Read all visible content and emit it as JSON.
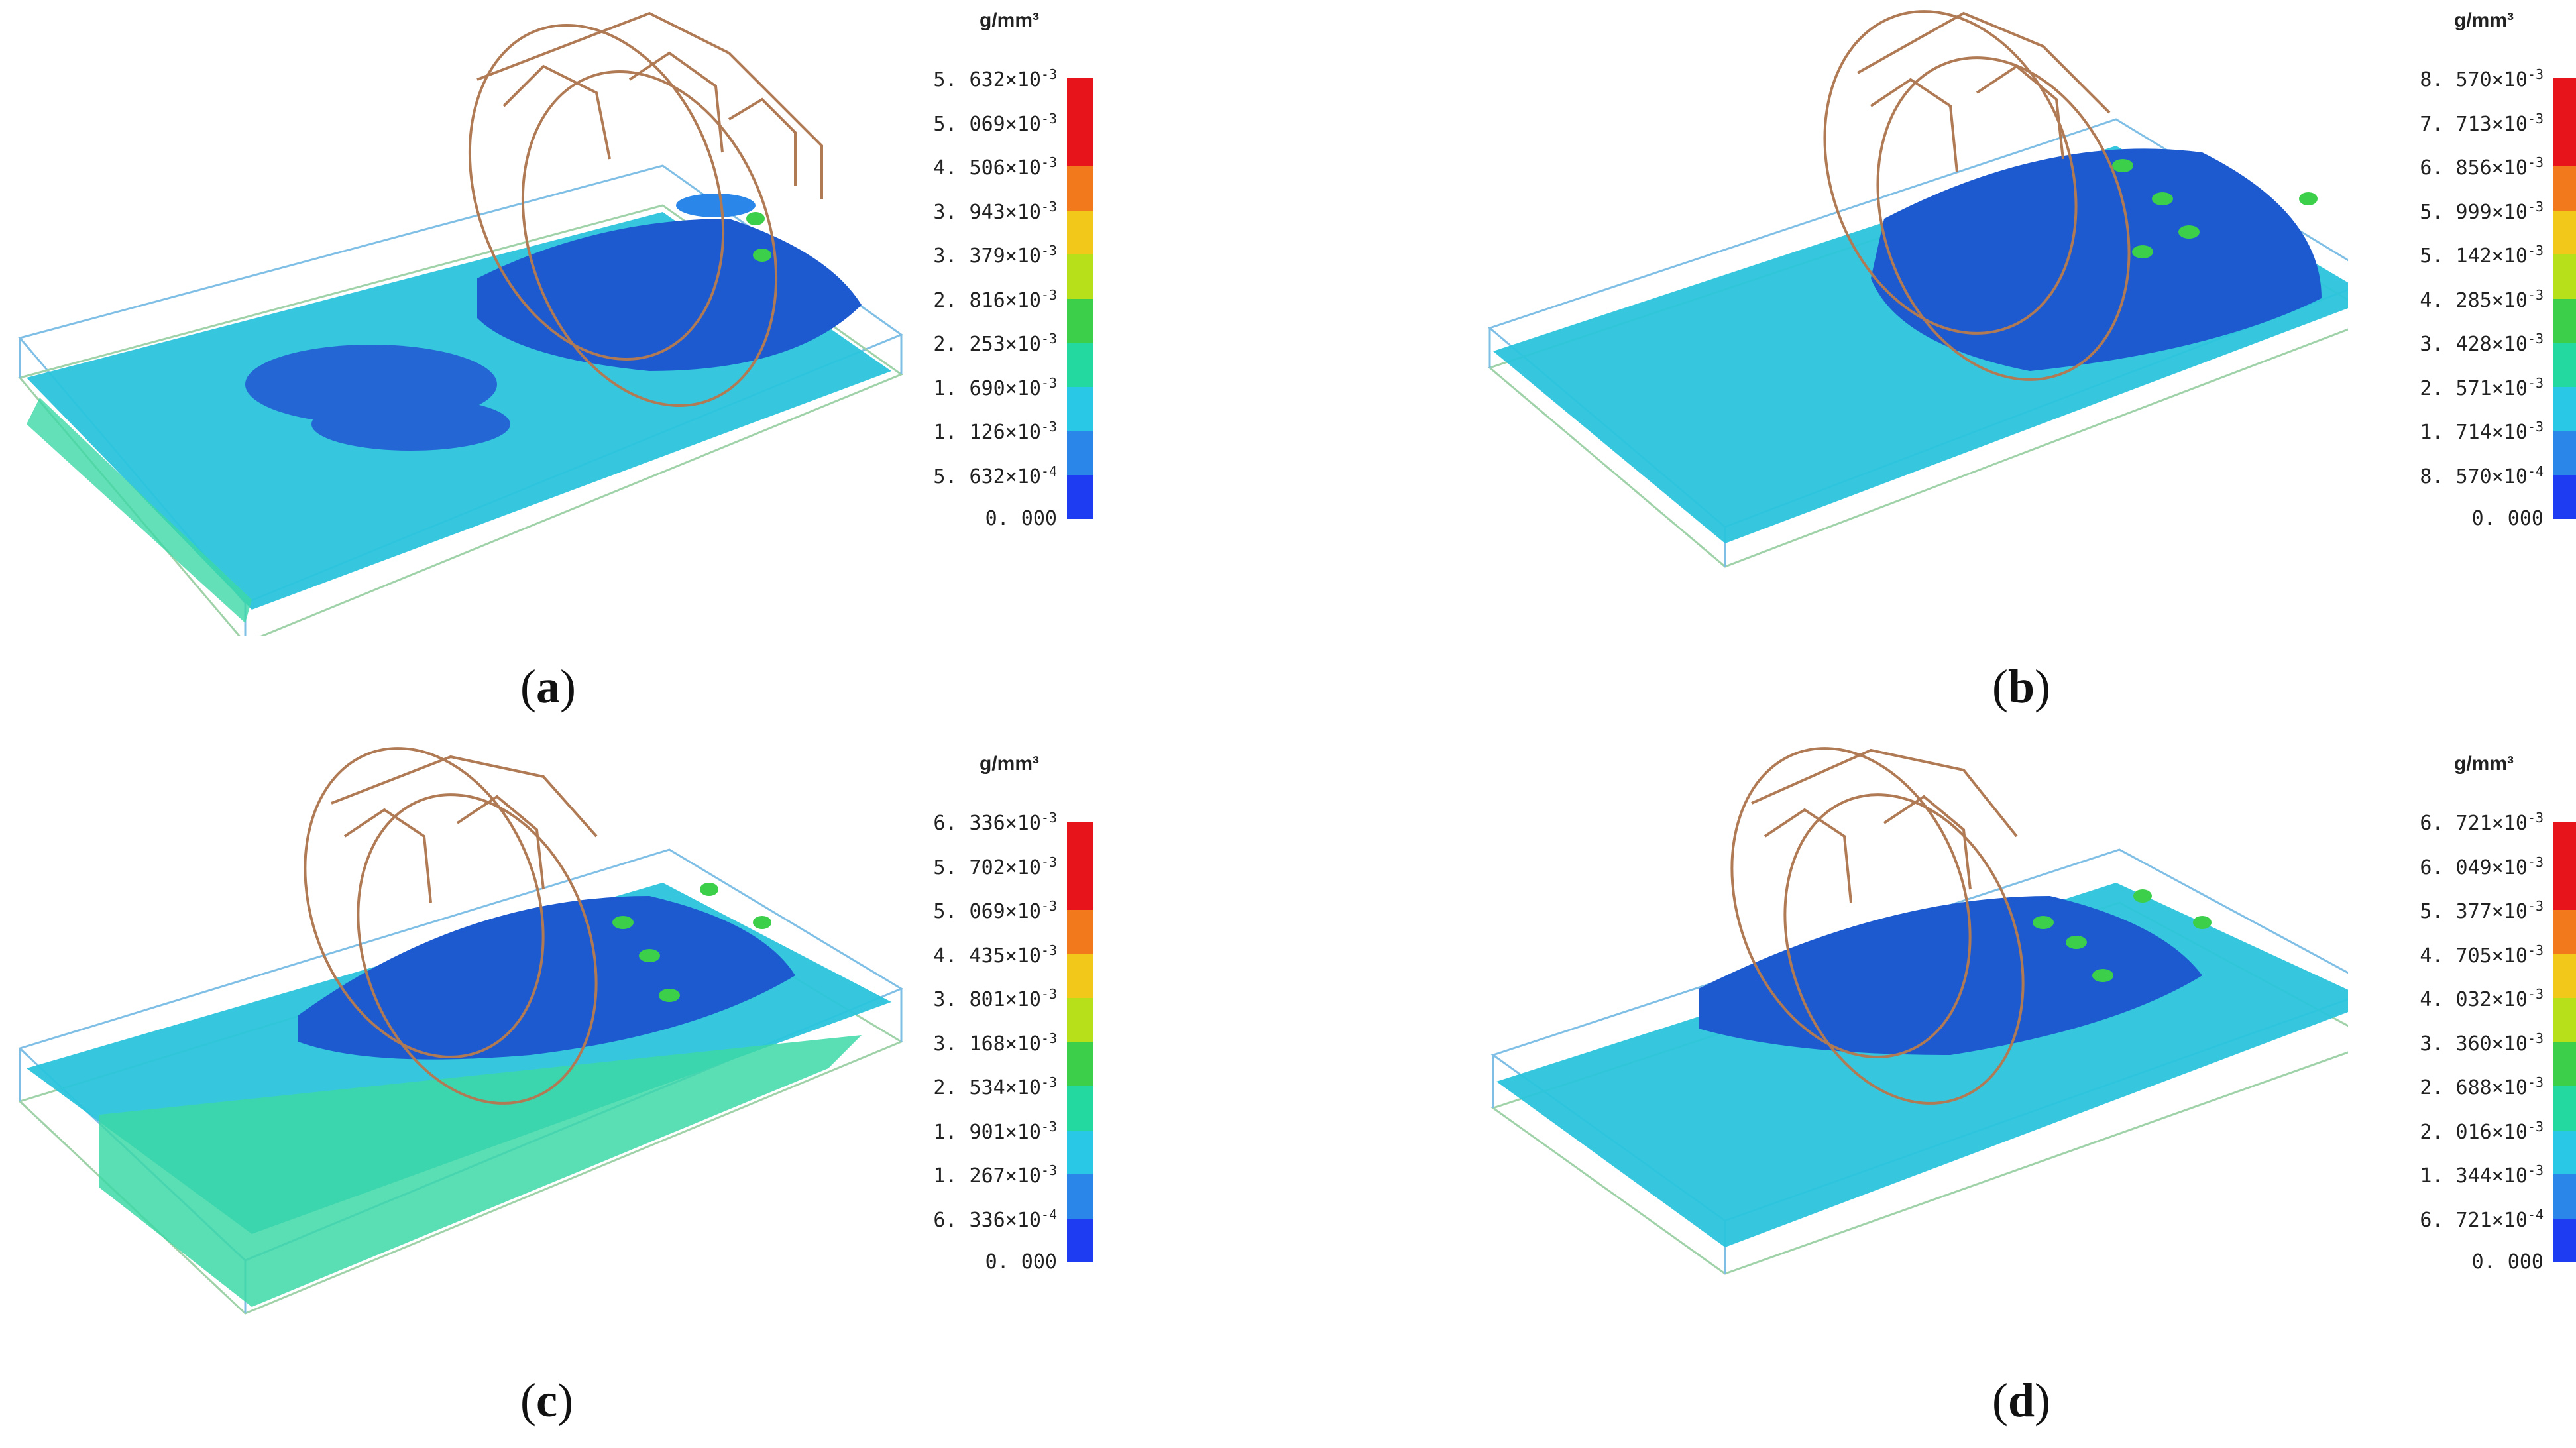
{
  "unit_label": "g/mm³",
  "colors": [
    "#e8141c",
    "#f27a1c",
    "#f2c81a",
    "#b8e01a",
    "#3ccf4a",
    "#24d9a0",
    "#28c8e6",
    "#2a86e8",
    "#1e3cf2"
  ],
  "panels": [
    {
      "id": "a",
      "caption_letter": "a",
      "ticks": [
        {
          "mant": "5. 632",
          "exp": "-3"
        },
        {
          "mant": "5. 069",
          "exp": "-3"
        },
        {
          "mant": "4. 506",
          "exp": "-3"
        },
        {
          "mant": "3. 943",
          "exp": "-3"
        },
        {
          "mant": "3. 379",
          "exp": "-3"
        },
        {
          "mant": "2. 816",
          "exp": "-3"
        },
        {
          "mant": "2. 253",
          "exp": "-3"
        },
        {
          "mant": "1. 690",
          "exp": "-3"
        },
        {
          "mant": "1. 126",
          "exp": "-3"
        },
        {
          "mant": "5. 632",
          "exp": "-4"
        },
        {
          "mant": "0. 000",
          "exp": ""
        }
      ]
    },
    {
      "id": "b",
      "caption_letter": "b",
      "ticks": [
        {
          "mant": "8. 570",
          "exp": "-3"
        },
        {
          "mant": "7. 713",
          "exp": "-3"
        },
        {
          "mant": "6. 856",
          "exp": "-3"
        },
        {
          "mant": "5. 999",
          "exp": "-3"
        },
        {
          "mant": "5. 142",
          "exp": "-3"
        },
        {
          "mant": "4. 285",
          "exp": "-3"
        },
        {
          "mant": "3. 428",
          "exp": "-3"
        },
        {
          "mant": "2. 571",
          "exp": "-3"
        },
        {
          "mant": "1. 714",
          "exp": "-3"
        },
        {
          "mant": "8. 570",
          "exp": "-4"
        },
        {
          "mant": "0. 000",
          "exp": ""
        }
      ]
    },
    {
      "id": "c",
      "caption_letter": "c",
      "ticks": [
        {
          "mant": "6. 336",
          "exp": "-3"
        },
        {
          "mant": "5. 702",
          "exp": "-3"
        },
        {
          "mant": "5. 069",
          "exp": "-3"
        },
        {
          "mant": "4. 435",
          "exp": "-3"
        },
        {
          "mant": "3. 801",
          "exp": "-3"
        },
        {
          "mant": "3. 168",
          "exp": "-3"
        },
        {
          "mant": "2. 534",
          "exp": "-3"
        },
        {
          "mant": "1. 901",
          "exp": "-3"
        },
        {
          "mant": "1. 267",
          "exp": "-3"
        },
        {
          "mant": "6. 336",
          "exp": "-4"
        },
        {
          "mant": "0. 000",
          "exp": ""
        }
      ]
    },
    {
      "id": "d",
      "caption_letter": "d",
      "ticks": [
        {
          "mant": "6. 721",
          "exp": "-3"
        },
        {
          "mant": "6. 049",
          "exp": "-3"
        },
        {
          "mant": "5. 377",
          "exp": "-3"
        },
        {
          "mant": "4. 705",
          "exp": "-3"
        },
        {
          "mant": "4. 032",
          "exp": "-3"
        },
        {
          "mant": "3. 360",
          "exp": "-3"
        },
        {
          "mant": "2. 688",
          "exp": "-3"
        },
        {
          "mant": "2. 016",
          "exp": "-3"
        },
        {
          "mant": "1. 344",
          "exp": "-3"
        },
        {
          "mant": "6. 721",
          "exp": "-4"
        },
        {
          "mant": "0. 000",
          "exp": ""
        }
      ]
    }
  ]
}
